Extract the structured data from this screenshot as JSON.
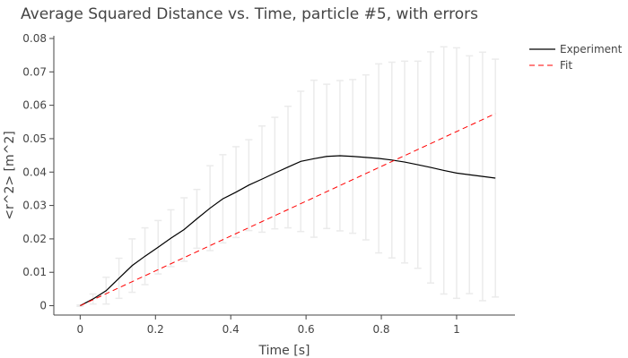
{
  "chart_data": {
    "type": "line",
    "title": "Average Squared Distance vs. Time, particle #5, with errors",
    "xlabel": "Time [s]",
    "ylabel": "<r^2> [m^2]",
    "xlim": [
      -0.07,
      1.155
    ],
    "ylim": [
      -0.0028,
      0.0808
    ],
    "xticks": [
      0,
      0.2,
      0.4,
      0.6,
      0.8,
      1
    ],
    "xtick_labels": [
      "0",
      "0.2",
      "0.4",
      "0.6",
      "0.8",
      "1"
    ],
    "yticks": [
      0,
      0.01,
      0.02,
      0.03,
      0.04,
      0.05,
      0.06,
      0.07,
      0.08
    ],
    "ytick_labels": [
      "0",
      "0.01",
      "0.02",
      "0.03",
      "0.04",
      "0.05",
      "0.06",
      "0.07",
      "0.08"
    ],
    "grid": false,
    "legend_position": "top-right",
    "series": [
      {
        "name": "Experiment",
        "color": "#000000",
        "dash": "solid",
        "x": [
          0,
          0.034,
          0.069,
          0.103,
          0.138,
          0.172,
          0.207,
          0.241,
          0.276,
          0.31,
          0.345,
          0.379,
          0.414,
          0.448,
          0.483,
          0.517,
          0.552,
          0.586,
          0.621,
          0.655,
          0.69,
          0.724,
          0.759,
          0.793,
          0.828,
          0.862,
          0.897,
          0.931,
          0.966,
          1.0,
          1.034,
          1.069,
          1.103
        ],
        "y": [
          0,
          0.002,
          0.0045,
          0.0082,
          0.012,
          0.0148,
          0.0175,
          0.0202,
          0.0228,
          0.026,
          0.0292,
          0.032,
          0.034,
          0.0361,
          0.0379,
          0.0397,
          0.0415,
          0.0432,
          0.044,
          0.0447,
          0.0449,
          0.0447,
          0.0444,
          0.0441,
          0.0436,
          0.043,
          0.0422,
          0.0414,
          0.0405,
          0.0397,
          0.0392,
          0.0387,
          0.0382
        ],
        "error": [
          0.0002,
          0.0015,
          0.004,
          0.006,
          0.008,
          0.0085,
          0.008,
          0.0085,
          0.0095,
          0.0088,
          0.0127,
          0.0132,
          0.0136,
          0.0136,
          0.0159,
          0.0167,
          0.0182,
          0.021,
          0.0235,
          0.0216,
          0.0225,
          0.023,
          0.0247,
          0.0283,
          0.0293,
          0.0302,
          0.031,
          0.0346,
          0.037,
          0.0375,
          0.0356,
          0.0372,
          0.0356
        ]
      },
      {
        "name": "Fit",
        "color": "#ff0000",
        "dash": "dashed",
        "x": [
          0,
          1.103
        ],
        "y": [
          0,
          0.0575
        ]
      }
    ]
  }
}
